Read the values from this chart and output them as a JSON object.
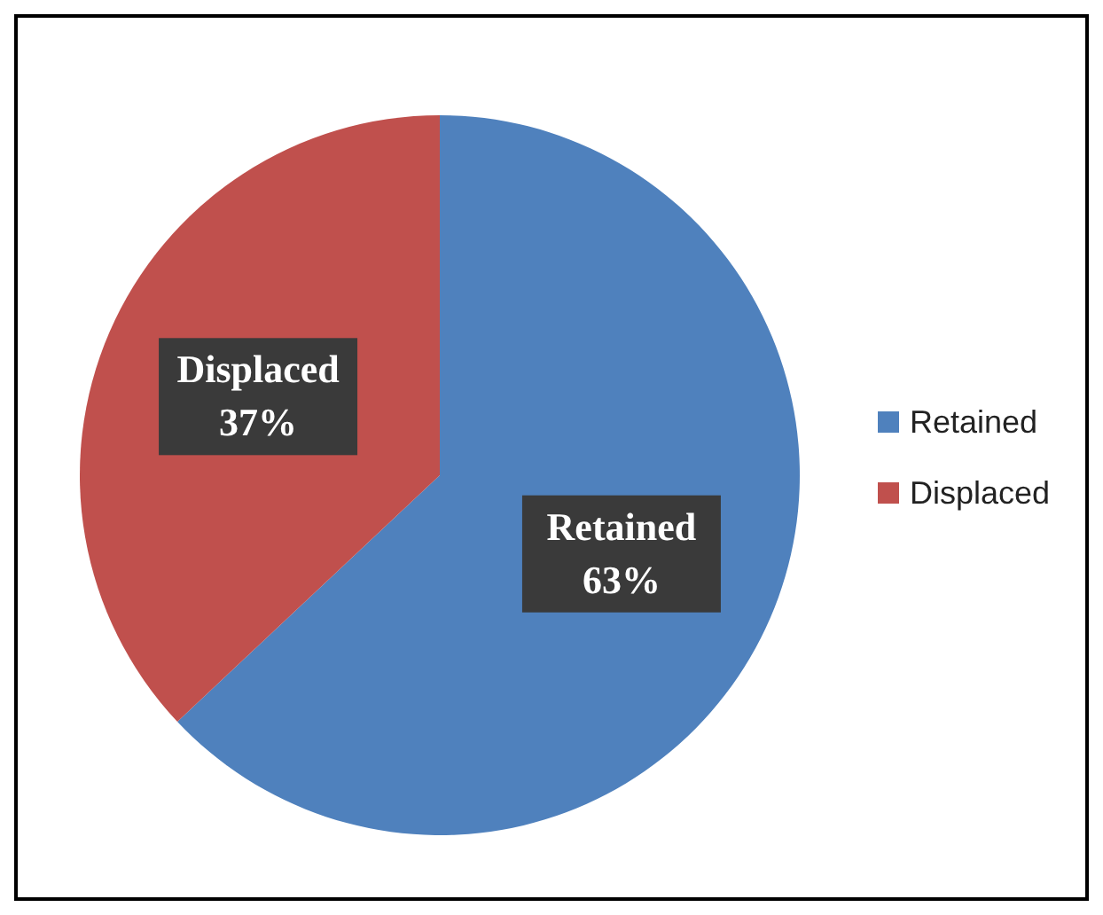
{
  "chart_data": {
    "type": "pie",
    "categories": [
      "Retained",
      "Displaced"
    ],
    "values": [
      63,
      37
    ],
    "colors": [
      "#4f81bd",
      "#c0504d"
    ],
    "value_labels": [
      "63%",
      "37%"
    ],
    "legend": "right"
  }
}
